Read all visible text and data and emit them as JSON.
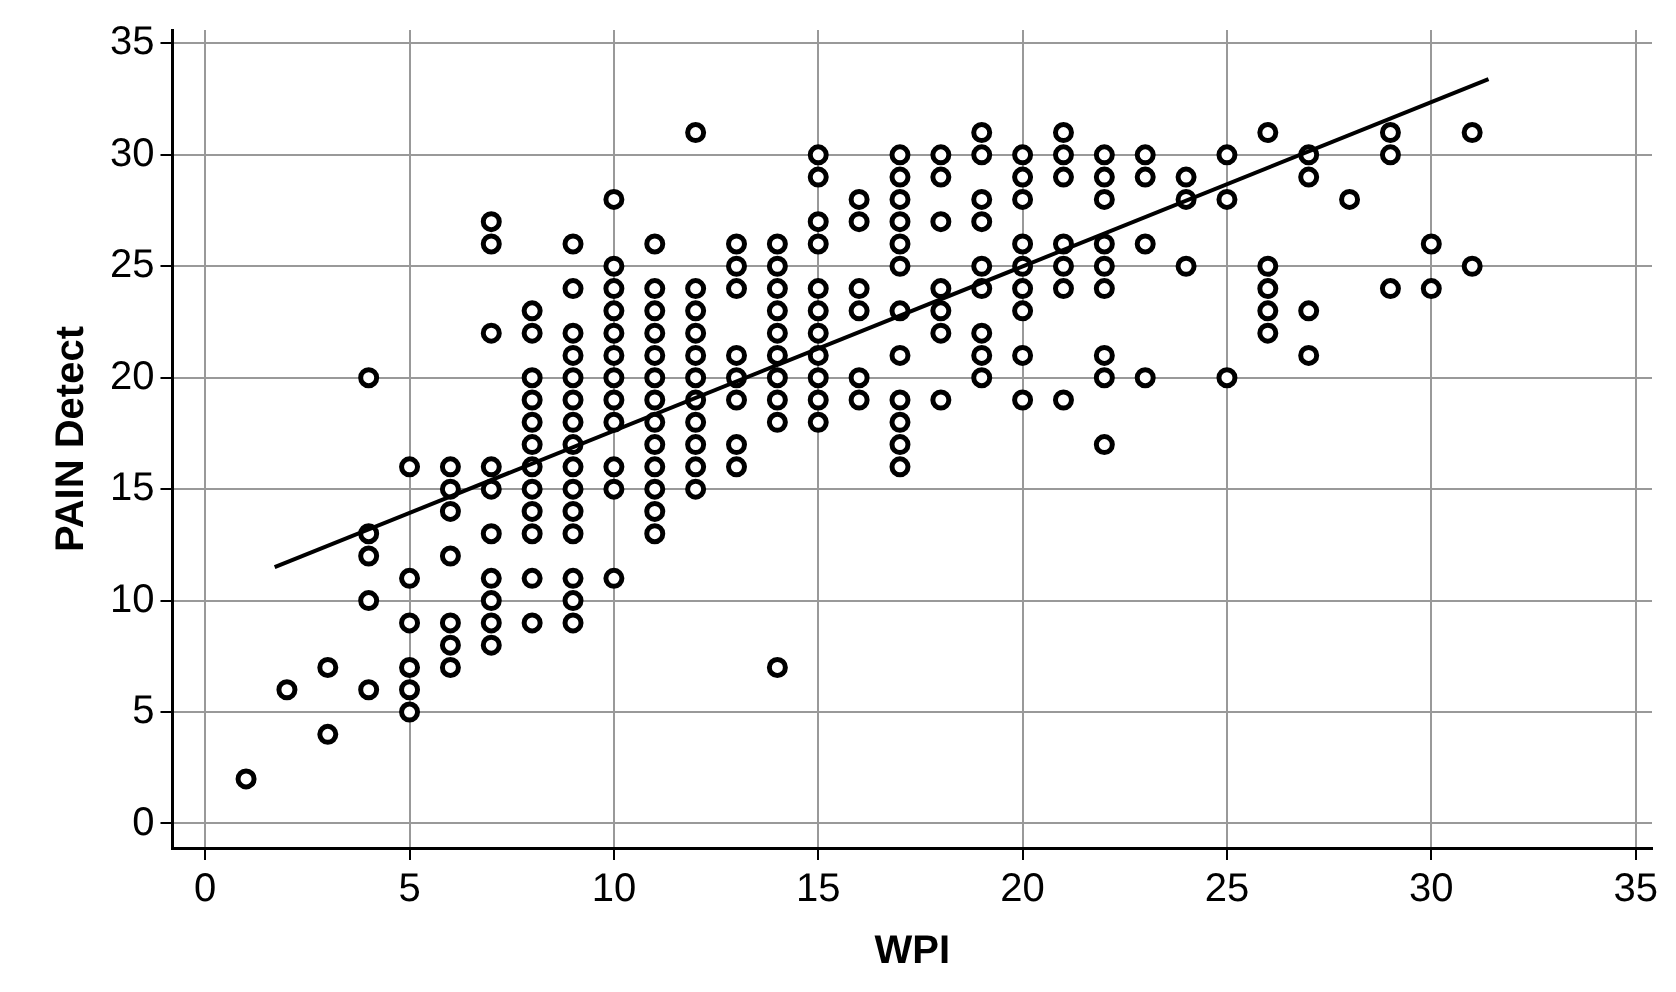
{
  "chart_data": {
    "type": "scatter",
    "xlabel": "WPI",
    "ylabel": "PAIN Detect",
    "xlim": [
      -0.8,
      35.4
    ],
    "ylim": [
      -1.1,
      35.6
    ],
    "xticks": [
      0,
      5,
      10,
      15,
      20,
      25,
      30,
      35
    ],
    "yticks": [
      0,
      5,
      10,
      15,
      20,
      25,
      30,
      35
    ],
    "grid": true,
    "legend": false,
    "marker": "circle",
    "series": [
      {
        "color": "#000000",
        "x": [
          1,
          2,
          3,
          3,
          4,
          4,
          4,
          4,
          4,
          5,
          5,
          5,
          5,
          5,
          5,
          6,
          6,
          6,
          6,
          6,
          6,
          6,
          7,
          7,
          7,
          7,
          7,
          7,
          7,
          7,
          7,
          7,
          8,
          8,
          8,
          8,
          8,
          8,
          8,
          8,
          8,
          8,
          8,
          8,
          9,
          9,
          9,
          9,
          9,
          9,
          9,
          9,
          9,
          9,
          9,
          9,
          9,
          9,
          9,
          10,
          10,
          10,
          10,
          10,
          10,
          10,
          10,
          10,
          10,
          10,
          10,
          11,
          11,
          11,
          11,
          11,
          11,
          11,
          11,
          11,
          11,
          11,
          11,
          11,
          12,
          12,
          12,
          12,
          12,
          12,
          12,
          12,
          12,
          12,
          12,
          13,
          13,
          13,
          13,
          13,
          13,
          13,
          13,
          14,
          14,
          14,
          14,
          14,
          14,
          14,
          14,
          14,
          14,
          15,
          15,
          15,
          15,
          15,
          15,
          15,
          15,
          15,
          15,
          15,
          16,
          16,
          16,
          16,
          16,
          16,
          17,
          17,
          17,
          17,
          17,
          17,
          17,
          17,
          17,
          17,
          17,
          17,
          18,
          18,
          18,
          18,
          18,
          18,
          18,
          19,
          19,
          19,
          19,
          19,
          19,
          19,
          19,
          19,
          20,
          20,
          20,
          20,
          20,
          20,
          20,
          20,
          20,
          21,
          21,
          21,
          21,
          21,
          21,
          21,
          22,
          22,
          22,
          22,
          22,
          22,
          22,
          22,
          22,
          23,
          23,
          23,
          23,
          24,
          24,
          24,
          25,
          25,
          25,
          26,
          26,
          26,
          26,
          26,
          27,
          27,
          27,
          27,
          28,
          29,
          29,
          29,
          30,
          30,
          31,
          31
        ],
        "values": [
          2,
          6,
          7,
          4,
          20,
          13,
          12,
          10,
          6,
          16,
          11,
          9,
          7,
          6,
          5,
          16,
          15,
          14,
          12,
          9,
          8,
          7,
          27,
          26,
          22,
          16,
          15,
          13,
          11,
          10,
          9,
          8,
          23,
          22,
          20,
          19,
          18,
          17,
          16,
          15,
          14,
          13,
          11,
          9,
          26,
          24,
          22,
          21,
          20,
          19,
          18,
          17,
          16,
          15,
          14,
          13,
          11,
          10,
          9,
          28,
          25,
          24,
          23,
          22,
          21,
          20,
          19,
          18,
          16,
          15,
          11,
          26,
          24,
          23,
          22,
          21,
          20,
          19,
          18,
          17,
          16,
          15,
          14,
          13,
          31,
          24,
          23,
          22,
          21,
          20,
          19,
          18,
          17,
          16,
          15,
          26,
          25,
          24,
          21,
          20,
          19,
          17,
          16,
          26,
          25,
          24,
          23,
          22,
          21,
          20,
          19,
          18,
          7,
          30,
          29,
          27,
          26,
          24,
          23,
          22,
          21,
          20,
          19,
          18,
          28,
          27,
          24,
          23,
          20,
          19,
          30,
          29,
          28,
          27,
          26,
          25,
          23,
          21,
          19,
          18,
          17,
          16,
          30,
          29,
          27,
          24,
          23,
          22,
          19,
          31,
          30,
          28,
          27,
          25,
          24,
          22,
          21,
          20,
          30,
          29,
          28,
          26,
          25,
          24,
          23,
          21,
          19,
          31,
          30,
          29,
          26,
          25,
          24,
          19,
          30,
          29,
          28,
          26,
          25,
          24,
          21,
          20,
          17,
          30,
          29,
          26,
          20,
          29,
          28,
          25,
          30,
          28,
          20,
          31,
          25,
          24,
          23,
          22,
          30,
          29,
          23,
          21,
          28,
          31,
          30,
          24,
          26,
          24,
          31,
          25
        ]
      },
      {
        "type": "line",
        "color": "#000000",
        "marker": "none",
        "line_style": "solid",
        "x": [
          1.7,
          31.4
        ],
        "values": [
          11.5,
          33.4
        ]
      }
    ]
  }
}
